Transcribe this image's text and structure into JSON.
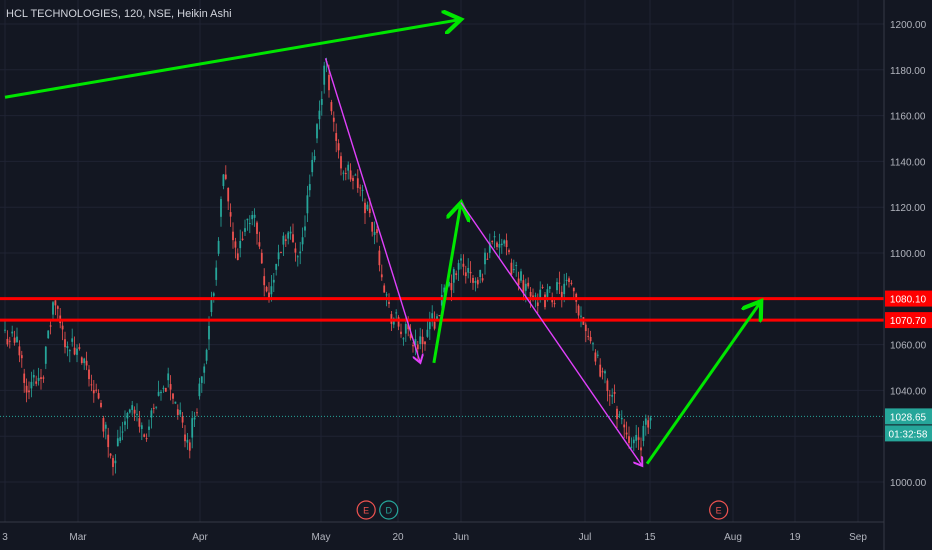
{
  "header": {
    "title": "HCL TECHNOLOGIES, 120, NSE, Heikin Ashi"
  },
  "colors": {
    "background": "#131722",
    "grid": "#1f2333",
    "axis_text": "#b2b5be",
    "bull": "#26a69a",
    "bear": "#ef5350",
    "level_line": "#ff0000",
    "green_arrow": "#00e600",
    "magenta_arrow": "#e040fb",
    "last_price": "#26a69a",
    "earnings_badge": "#ef5350",
    "dividend_badge": "#26a69a"
  },
  "chart_data": {
    "type": "candlestick",
    "title": "HCL TECHNOLOGIES, 120, NSE, Heikin Ashi",
    "y_ticks": [
      "1000.00",
      "1020.00",
      "1040.00",
      "1060.00",
      "1080.00",
      "1100.00",
      "1120.00",
      "1140.00",
      "1160.00",
      "1180.00",
      "1200.00"
    ],
    "ylim": [
      990,
      1216
    ],
    "x_ticks": [
      "3",
      "Mar",
      "Apr",
      "May",
      "20",
      "Jun",
      "Jul",
      "15",
      "Aug",
      "19",
      "Sep"
    ],
    "price_path": [
      {
        "date": "Feb 3",
        "price": 1065
      },
      {
        "date": "Feb 8",
        "price": 1060
      },
      {
        "date": "Feb 12",
        "price": 1040
      },
      {
        "date": "Feb 18",
        "price": 1050
      },
      {
        "date": "Feb 22",
        "price": 1080
      },
      {
        "date": "Feb 25",
        "price": 1065
      },
      {
        "date": "Mar 1",
        "price": 1055
      },
      {
        "date": "Mar 5",
        "price": 1042
      },
      {
        "date": "Mar 10",
        "price": 1010
      },
      {
        "date": "Mar 14",
        "price": 1035
      },
      {
        "date": "Mar 18",
        "price": 1020
      },
      {
        "date": "Mar 24",
        "price": 1045
      },
      {
        "date": "Mar 29",
        "price": 1015
      },
      {
        "date": "Apr 3",
        "price": 1060
      },
      {
        "date": "Apr 7",
        "price": 1135
      },
      {
        "date": "Apr 10",
        "price": 1095
      },
      {
        "date": "Apr 14",
        "price": 1120
      },
      {
        "date": "Apr 18",
        "price": 1080
      },
      {
        "date": "Apr 22",
        "price": 1110
      },
      {
        "date": "Apr 26",
        "price": 1100
      },
      {
        "date": "Apr 29",
        "price": 1140
      },
      {
        "date": "May 2",
        "price": 1185
      },
      {
        "date": "May 5",
        "price": 1140
      },
      {
        "date": "May 9",
        "price": 1130
      },
      {
        "date": "May 13",
        "price": 1110
      },
      {
        "date": "May 16",
        "price": 1075
      },
      {
        "date": "May 19",
        "price": 1065
      },
      {
        "date": "May 23",
        "price": 1060
      },
      {
        "date": "May 27",
        "price": 1075
      },
      {
        "date": "Jun 1",
        "price": 1095
      },
      {
        "date": "Jun 5",
        "price": 1085
      },
      {
        "date": "Jun 9",
        "price": 1110
      },
      {
        "date": "Jun 13",
        "price": 1095
      },
      {
        "date": "Jun 17",
        "price": 1085
      },
      {
        "date": "Jun 21",
        "price": 1080
      },
      {
        "date": "Jun 27",
        "price": 1085
      },
      {
        "date": "Jul 1",
        "price": 1070
      },
      {
        "date": "Jul 5",
        "price": 1045
      },
      {
        "date": "Jul 9",
        "price": 1025
      },
      {
        "date": "Jul 12",
        "price": 1015
      },
      {
        "date": "Jul 15",
        "price": 1028.65
      }
    ],
    "horizontal_levels": [
      {
        "label": "1080.10",
        "value": 1080.1
      },
      {
        "label": "1070.70",
        "value": 1070.7
      }
    ],
    "last_price": {
      "label": "1028.65",
      "value": 1028.65,
      "countdown": "01:32:58"
    },
    "trend_arrows": [
      {
        "color": "green",
        "from": {
          "date": "Feb 3",
          "price": 1168
        },
        "to": {
          "date": "Jun 1",
          "price": 1202
        }
      },
      {
        "color": "magenta",
        "from": {
          "date": "May 2",
          "price": 1185
        },
        "to": {
          "date": "May 23",
          "price": 1052
        }
      },
      {
        "color": "green",
        "from": {
          "date": "May 26",
          "price": 1052
        },
        "to": {
          "date": "Jun 1",
          "price": 1122
        }
      },
      {
        "color": "magenta",
        "from": {
          "date": "Jun 1",
          "price": 1122
        },
        "to": {
          "date": "Jul 13",
          "price": 1007
        }
      },
      {
        "color": "green",
        "from": {
          "date": "Jul 14",
          "price": 1008
        },
        "to": {
          "date": "Aug 8",
          "price": 1079
        }
      }
    ],
    "event_markers": [
      {
        "label": "E",
        "type": "earnings",
        "date": "May 11"
      },
      {
        "label": "D",
        "type": "dividend",
        "date": "May 16"
      },
      {
        "label": "E",
        "type": "earnings",
        "date": "Jul 29"
      }
    ]
  }
}
